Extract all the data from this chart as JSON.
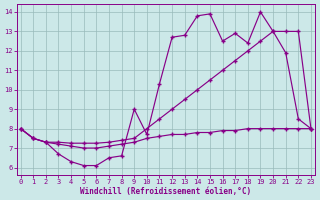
{
  "xlabel": "Windchill (Refroidissement éolien,°C)",
  "bg_color": "#cce8e8",
  "line_color": "#880088",
  "grid_color": "#99bbbb",
  "xlim": [
    -0.3,
    23.3
  ],
  "ylim": [
    5.6,
    14.4
  ],
  "x_ticks": [
    0,
    1,
    2,
    3,
    4,
    5,
    6,
    7,
    8,
    9,
    10,
    11,
    12,
    13,
    14,
    15,
    16,
    17,
    18,
    19,
    20,
    21,
    22,
    23
  ],
  "y_ticks": [
    6,
    7,
    8,
    9,
    10,
    11,
    12,
    13,
    14
  ],
  "line1_x": [
    0,
    1,
    2,
    3,
    4,
    5,
    6,
    7,
    8,
    9,
    10,
    11,
    12,
    13,
    14,
    15,
    16,
    17,
    18,
    19,
    20,
    21,
    22,
    23
  ],
  "line1_y": [
    8.0,
    7.5,
    7.3,
    7.3,
    7.25,
    7.25,
    7.25,
    7.3,
    7.4,
    7.5,
    8.0,
    8.5,
    9.0,
    9.5,
    10.0,
    10.5,
    11.0,
    11.5,
    12.0,
    12.5,
    13.0,
    13.0,
    13.0,
    8.0
  ],
  "line2_x": [
    0,
    1,
    2,
    3,
    4,
    5,
    6,
    7,
    8,
    9,
    10,
    11,
    12,
    13,
    14,
    15,
    16,
    17,
    18,
    19,
    20,
    21,
    22,
    23
  ],
  "line2_y": [
    8.0,
    7.5,
    7.3,
    6.7,
    6.3,
    6.1,
    6.1,
    6.5,
    6.6,
    9.0,
    7.7,
    10.3,
    12.7,
    12.8,
    13.8,
    13.9,
    12.5,
    12.9,
    12.4,
    14.0,
    13.0,
    11.9,
    8.5,
    8.0
  ],
  "line3_x": [
    0,
    1,
    2,
    3,
    4,
    5,
    6,
    7,
    8,
    9,
    10,
    11,
    12,
    13,
    14,
    15,
    16,
    17,
    18,
    19,
    20,
    21,
    22,
    23
  ],
  "line3_y": [
    8.0,
    7.5,
    7.3,
    7.2,
    7.1,
    7.0,
    7.0,
    7.1,
    7.2,
    7.3,
    7.5,
    7.6,
    7.7,
    7.7,
    7.8,
    7.8,
    7.9,
    7.9,
    8.0,
    8.0,
    8.0,
    8.0,
    8.0,
    8.0
  ]
}
